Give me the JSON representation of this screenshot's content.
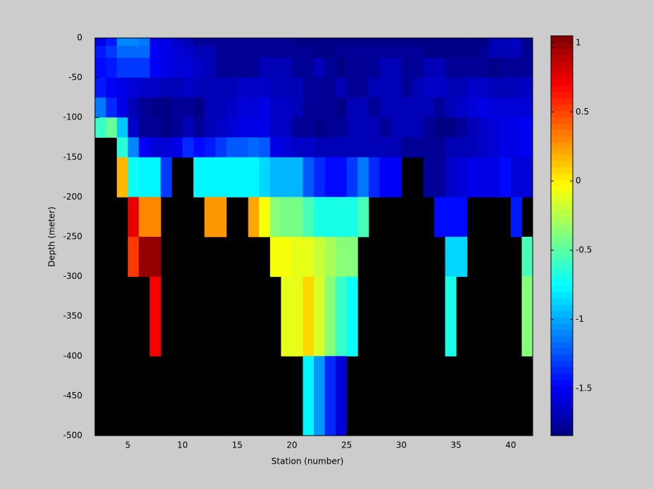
{
  "chart_data": {
    "type": "heatmap",
    "xlabel": "Station (number)",
    "ylabel": "Depth (meter)",
    "xlim": [
      2,
      42
    ],
    "ylim": [
      -500,
      0
    ],
    "xticks": [
      5,
      10,
      15,
      20,
      25,
      30,
      35,
      40
    ],
    "yticks": [
      0,
      -50,
      -100,
      -150,
      -200,
      -250,
      -300,
      -350,
      -400,
      -450,
      -500
    ],
    "colormap": "jet",
    "clim": [
      -1.84,
      1.05
    ],
    "colorbar_ticks": [
      1,
      0.5,
      0,
      -0.5,
      -1,
      -1.5
    ],
    "x_edges": [
      2,
      3,
      4,
      5,
      6,
      7,
      8,
      9,
      10,
      11,
      12,
      13,
      14,
      15,
      16,
      17,
      18,
      19,
      20,
      21,
      22,
      23,
      24,
      25,
      26,
      27,
      28,
      29,
      30,
      31,
      32,
      33,
      34,
      35,
      36,
      37,
      38,
      39,
      40,
      41,
      42
    ],
    "y_edges": [
      0,
      -10,
      -25,
      -50,
      -75,
      -100,
      -125,
      -150,
      -200,
      -250,
      -300,
      -400,
      -500
    ],
    "z": [
      [
        -1.55,
        -1.4,
        -1.1,
        -1.1,
        -1.15,
        -1.55,
        -1.55,
        -1.65,
        -1.7,
        -1.75,
        -1.75,
        -1.75,
        -1.75,
        -1.75,
        -1.75,
        -1.75,
        -1.75,
        -1.75,
        -1.8,
        -1.8,
        -1.8,
        -1.8,
        -1.8,
        -1.8,
        -1.8,
        -1.8,
        -1.8,
        -1.8,
        -1.8,
        -1.8,
        -1.8,
        -1.8,
        -1.8,
        -1.8,
        -1.8,
        -1.8,
        -1.7,
        -1.7,
        -1.65,
        -1.8
      ],
      [
        -1.4,
        -1.3,
        -1.2,
        -1.2,
        -1.2,
        -1.5,
        -1.55,
        -1.6,
        -1.65,
        -1.7,
        -1.7,
        -1.75,
        -1.75,
        -1.75,
        -1.75,
        -1.75,
        -1.75,
        -1.75,
        -1.75,
        -1.75,
        -1.8,
        -1.8,
        -1.75,
        -1.75,
        -1.75,
        -1.75,
        -1.75,
        -1.75,
        -1.75,
        -1.75,
        -1.8,
        -1.8,
        -1.8,
        -1.8,
        -1.8,
        -1.75,
        -1.7,
        -1.7,
        -1.7,
        -1.75
      ],
      [
        -1.45,
        -1.4,
        -1.3,
        -1.3,
        -1.3,
        -1.5,
        -1.55,
        -1.6,
        -1.6,
        -1.65,
        -1.7,
        -1.75,
        -1.75,
        -1.75,
        -1.75,
        -1.7,
        -1.7,
        -1.7,
        -1.75,
        -1.75,
        -1.7,
        -1.75,
        -1.8,
        -1.75,
        -1.75,
        -1.75,
        -1.7,
        -1.7,
        -1.75,
        -1.75,
        -1.7,
        -1.7,
        -1.75,
        -1.75,
        -1.75,
        -1.75,
        -1.8,
        -1.75,
        -1.75,
        -1.75
      ],
      [
        -1.4,
        -1.5,
        -1.55,
        -1.6,
        -1.65,
        -1.65,
        -1.7,
        -1.7,
        -1.65,
        -1.7,
        -1.7,
        -1.7,
        -1.7,
        -1.65,
        -1.65,
        -1.65,
        -1.7,
        -1.7,
        -1.7,
        -1.75,
        -1.75,
        -1.75,
        -1.7,
        -1.75,
        -1.75,
        -1.7,
        -1.7,
        -1.7,
        -1.75,
        -1.7,
        -1.65,
        -1.65,
        -1.7,
        -1.7,
        -1.65,
        -1.65,
        -1.7,
        -1.7,
        -1.7,
        -1.65
      ],
      [
        -1.15,
        -1.35,
        -1.55,
        -1.7,
        -1.75,
        -1.8,
        -1.8,
        -1.75,
        -1.75,
        -1.8,
        -1.7,
        -1.7,
        -1.65,
        -1.6,
        -1.6,
        -1.55,
        -1.65,
        -1.65,
        -1.7,
        -1.75,
        -1.75,
        -1.75,
        -1.8,
        -1.7,
        -1.7,
        -1.75,
        -1.7,
        -1.7,
        -1.7,
        -1.7,
        -1.7,
        -1.75,
        -1.7,
        -1.65,
        -1.6,
        -1.55,
        -1.6,
        -1.6,
        -1.6,
        -1.6
      ],
      [
        -0.6,
        -0.45,
        -0.9,
        -1.65,
        -1.75,
        -1.75,
        -1.8,
        -1.75,
        -1.7,
        -1.75,
        -1.7,
        -1.65,
        -1.6,
        -1.55,
        -1.55,
        -1.55,
        -1.65,
        -1.65,
        -1.75,
        -1.75,
        -1.8,
        -1.75,
        -1.75,
        -1.7,
        -1.7,
        -1.7,
        -1.75,
        -1.7,
        -1.7,
        -1.7,
        -1.75,
        -1.8,
        -1.8,
        -1.75,
        -1.7,
        -1.65,
        -1.6,
        -1.55,
        -1.55,
        -1.5
      ],
      [
        null,
        null,
        -0.65,
        -1.1,
        -1.5,
        -1.6,
        -1.6,
        -1.55,
        -1.35,
        -1.45,
        -1.4,
        -1.3,
        -1.25,
        -1.25,
        -1.2,
        -1.25,
        -1.55,
        -1.6,
        -1.65,
        -1.65,
        -1.7,
        -1.7,
        -1.7,
        -1.7,
        -1.7,
        -1.7,
        -1.7,
        -1.7,
        -1.75,
        -1.75,
        -1.75,
        -1.75,
        -1.7,
        -1.7,
        -1.7,
        -1.65,
        -1.6,
        -1.55,
        -1.55,
        -1.5
      ],
      [
        null,
        null,
        0.15,
        -0.75,
        -0.8,
        -0.8,
        -1.3,
        null,
        null,
        -0.8,
        -0.8,
        -0.8,
        -0.8,
        -0.8,
        -0.8,
        -0.85,
        -0.95,
        -0.95,
        -0.95,
        -1.25,
        -1.35,
        -1.45,
        -1.45,
        -1.3,
        -1.15,
        -1.35,
        -1.5,
        -1.5,
        null,
        null,
        -1.75,
        -1.75,
        -1.65,
        -1.6,
        -1.55,
        -1.55,
        -1.55,
        -1.45,
        -1.6,
        -1.6
      ],
      [
        null,
        null,
        null,
        0.75,
        0.3,
        0.3,
        null,
        null,
        null,
        null,
        0.25,
        0.25,
        null,
        null,
        0.2,
        -0.05,
        -0.35,
        -0.4,
        -0.4,
        -0.55,
        -0.7,
        -0.7,
        -0.7,
        -0.7,
        -0.55,
        null,
        null,
        null,
        null,
        null,
        null,
        -1.45,
        -1.45,
        -1.45,
        null,
        null,
        null,
        null,
        -1.4,
        null
      ],
      [
        null,
        null,
        null,
        0.55,
        1.0,
        1.0,
        null,
        null,
        null,
        null,
        null,
        null,
        null,
        null,
        null,
        null,
        -0.05,
        -0.05,
        -0.1,
        -0.1,
        -0.2,
        -0.3,
        -0.35,
        -0.35,
        null,
        null,
        null,
        null,
        null,
        null,
        null,
        null,
        -0.85,
        -0.85,
        null,
        null,
        null,
        null,
        null,
        -0.55
      ],
      [
        null,
        null,
        null,
        null,
        null,
        0.7,
        null,
        null,
        null,
        null,
        null,
        null,
        null,
        null,
        null,
        null,
        null,
        -0.1,
        -0.1,
        0.1,
        -0.15,
        -0.35,
        -0.6,
        -0.75,
        null,
        null,
        null,
        null,
        null,
        null,
        null,
        null,
        -0.7,
        null,
        null,
        null,
        null,
        null,
        null,
        -0.35
      ],
      [
        null,
        null,
        null,
        null,
        null,
        null,
        null,
        null,
        null,
        null,
        null,
        null,
        null,
        null,
        null,
        null,
        null,
        null,
        null,
        -0.8,
        -1.05,
        -1.35,
        -1.6,
        null,
        null,
        null,
        null,
        null,
        null,
        null,
        null,
        null,
        null,
        null,
        null,
        null,
        null,
        null,
        null,
        null
      ]
    ]
  }
}
